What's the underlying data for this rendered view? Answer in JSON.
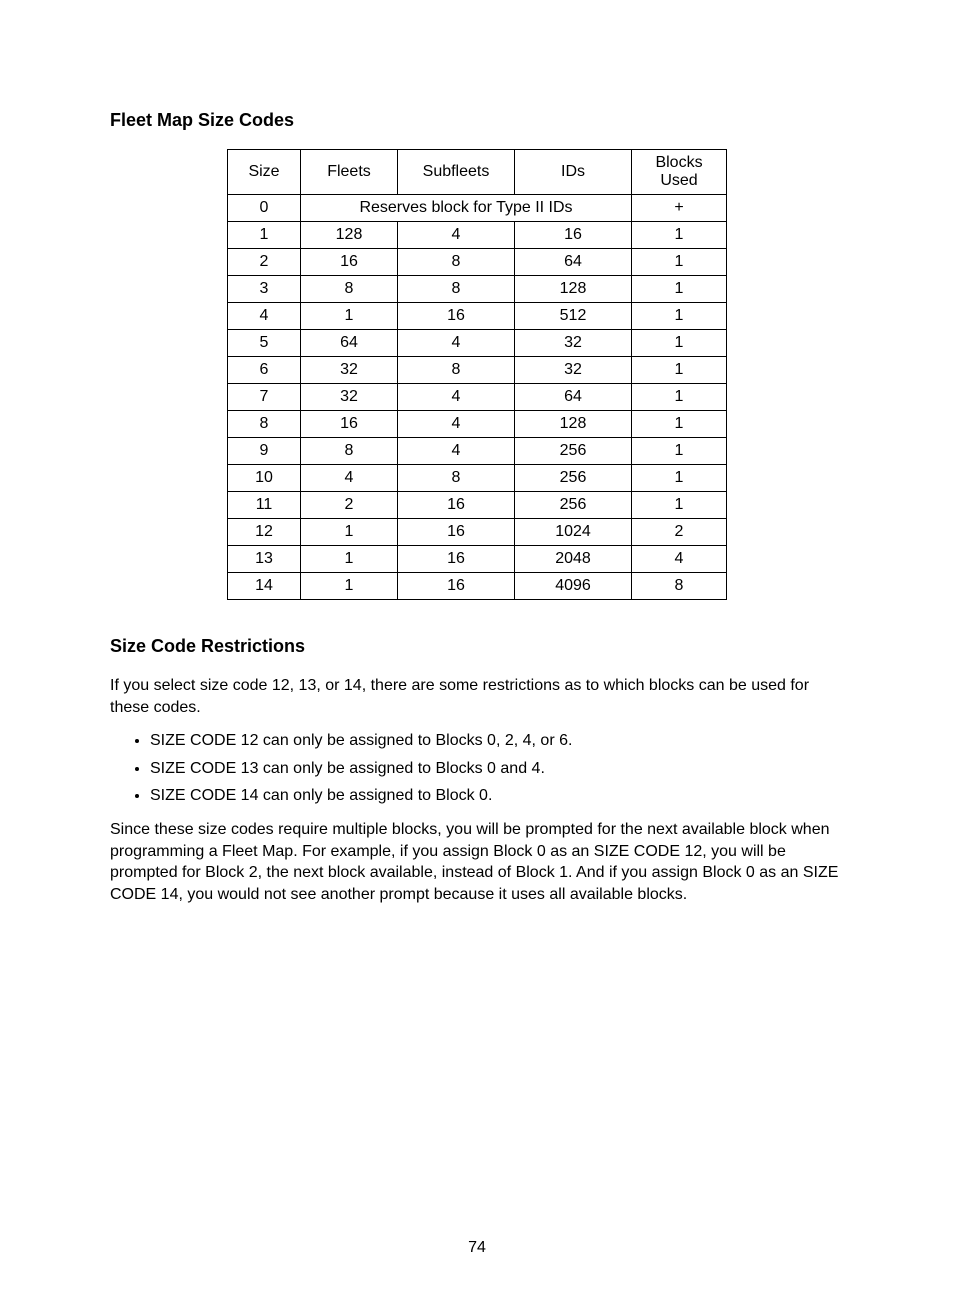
{
  "heading1": "Fleet Map Size Codes",
  "heading2": "Size Code Restrictions",
  "table": {
    "columns": [
      "Size",
      "Fleets",
      "Subfleets",
      "IDs",
      "Blocks Used"
    ],
    "special_row": {
      "size": "0",
      "span_text": "Reserves block for Type II IDs",
      "blocks": "+"
    },
    "rows": [
      {
        "size": "1",
        "fleets": "128",
        "subfleets": "4",
        "ids": "16",
        "blocks": "1"
      },
      {
        "size": "2",
        "fleets": "16",
        "subfleets": "8",
        "ids": "64",
        "blocks": "1"
      },
      {
        "size": "3",
        "fleets": "8",
        "subfleets": "8",
        "ids": "128",
        "blocks": "1"
      },
      {
        "size": "4",
        "fleets": "1",
        "subfleets": "16",
        "ids": "512",
        "blocks": "1"
      },
      {
        "size": "5",
        "fleets": "64",
        "subfleets": "4",
        "ids": "32",
        "blocks": "1"
      },
      {
        "size": "6",
        "fleets": "32",
        "subfleets": "8",
        "ids": "32",
        "blocks": "1"
      },
      {
        "size": "7",
        "fleets": "32",
        "subfleets": "4",
        "ids": "64",
        "blocks": "1"
      },
      {
        "size": "8",
        "fleets": "16",
        "subfleets": "4",
        "ids": "128",
        "blocks": "1"
      },
      {
        "size": "9",
        "fleets": "8",
        "subfleets": "4",
        "ids": "256",
        "blocks": "1"
      },
      {
        "size": "10",
        "fleets": "4",
        "subfleets": "8",
        "ids": "256",
        "blocks": "1"
      },
      {
        "size": "11",
        "fleets": "2",
        "subfleets": "16",
        "ids": "256",
        "blocks": "1"
      },
      {
        "size": "12",
        "fleets": "1",
        "subfleets": "16",
        "ids": "1024",
        "blocks": "2"
      },
      {
        "size": "13",
        "fleets": "1",
        "subfleets": "16",
        "ids": "2048",
        "blocks": "4"
      },
      {
        "size": "14",
        "fleets": "1",
        "subfleets": "16",
        "ids": "4096",
        "blocks": "8"
      }
    ]
  },
  "para1": "If you select size code 12, 13, or 14, there are some restrictions as to which blocks can be used for these codes.",
  "bullets": [
    "SIZE CODE 12 can only be assigned to Blocks 0, 2, 4, or 6.",
    "SIZE CODE 13 can only be assigned to Blocks 0 and 4.",
    "SIZE CODE 14 can only be assigned to Block 0."
  ],
  "para2": "Since these size codes require multiple blocks, you will be prompted for the next available block when programming a Fleet Map. For example, if you assign Block 0 as an SIZE CODE 12, you will be prompted for Block 2, the next block available, instead of Block 1. And if you assign Block 0 as an SIZE CODE 14, you would not see another prompt because it uses all available blocks.",
  "page_number": "74"
}
